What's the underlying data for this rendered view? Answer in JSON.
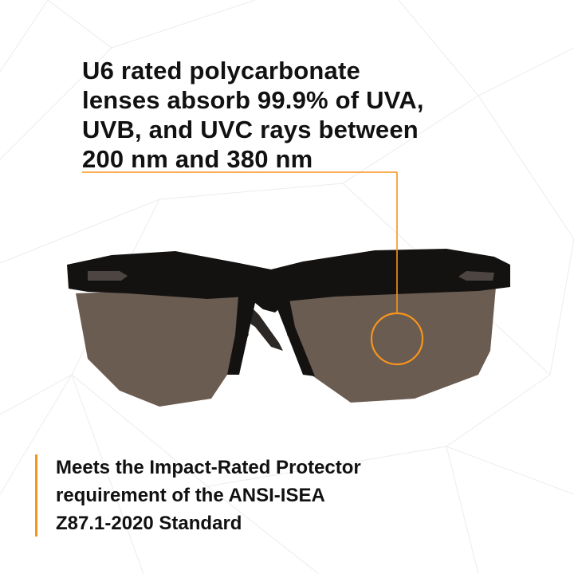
{
  "headline": {
    "lines": [
      "U6 rated polycarbonate",
      "lenses absorb 99.9% of UVA,",
      "UVB, and UVC rays between",
      "200 nm and 380 nm"
    ]
  },
  "footer": {
    "lines": [
      "Meets the Impact-Rated Protector",
      "requirement of the ANSI-ISEA",
      "Z87.1-2020 Standard"
    ]
  },
  "colors": {
    "accent": "#f7941d",
    "lens": "#6b5c52",
    "frame": "#141210",
    "text": "#111111"
  },
  "icons": {
    "product": "safety-glasses"
  }
}
